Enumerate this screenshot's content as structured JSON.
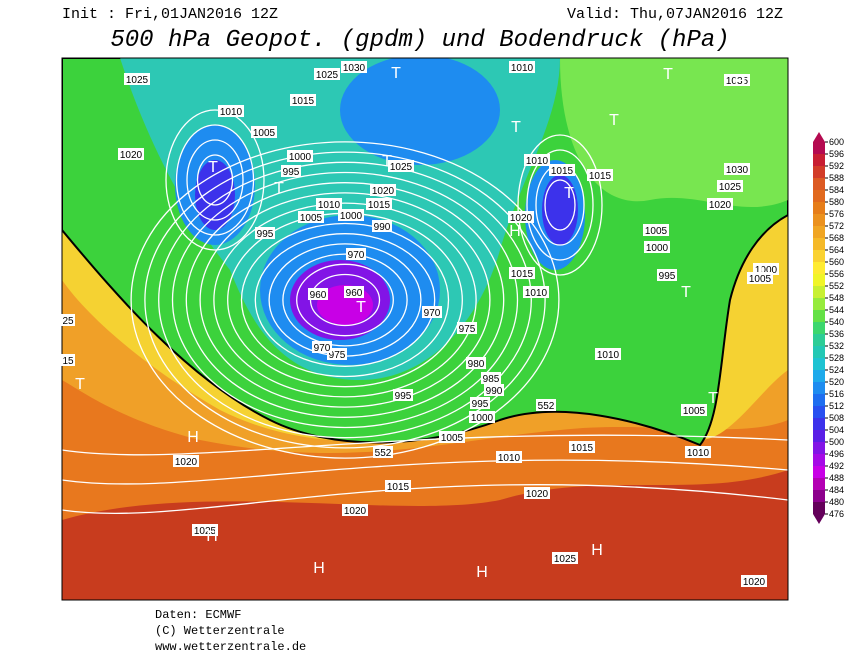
{
  "header": {
    "init": "Init : Fri,01JAN2016 12Z",
    "valid": "Valid: Thu,07JAN2016 12Z",
    "title": "500 hPa Geopot. (gpdm) und Bodendruck (hPa)"
  },
  "colorbar": {
    "labels": [
      600,
      596,
      592,
      588,
      584,
      580,
      576,
      572,
      568,
      564,
      560,
      556,
      552,
      548,
      544,
      540,
      536,
      532,
      528,
      524,
      520,
      516,
      512,
      508,
      504,
      500,
      496,
      492,
      488,
      484,
      480,
      476
    ],
    "colors": [
      "#b40a50",
      "#c81e32",
      "#d23c28",
      "#dc5a23",
      "#e1691e",
      "#e67d19",
      "#eb911e",
      "#f0a523",
      "#f5b928",
      "#fad232",
      "#ffeb32",
      "#f0f528",
      "#c8f032",
      "#96eb3c",
      "#64e146",
      "#3cd76e",
      "#2dcd96",
      "#23c8b4",
      "#1ec3d2",
      "#1eaaeb",
      "#1e8cf0",
      "#1e6ef0",
      "#2850f0",
      "#3c32eb",
      "#5a1ee6",
      "#8214e6",
      "#a50ae6",
      "#c800e6",
      "#b400b4",
      "#8c008c",
      "#64005a"
    ]
  },
  "isobar_labels": [
    "1025",
    "1030",
    "1025",
    "1015",
    "1010",
    "1005",
    "1000",
    "995",
    "1020",
    "995",
    "1010",
    "1005",
    "1000",
    "1015",
    "1020",
    "1025",
    "990",
    "970",
    "960",
    "960",
    "970",
    "975",
    "975",
    "970",
    "980",
    "985",
    "990",
    "995",
    "995",
    "1000",
    "1005",
    "552",
    "552",
    "1010",
    "1015",
    "1020",
    "1020",
    "1020",
    "1025",
    "1025",
    "1020",
    "1010",
    "1010",
    "1015",
    "1015",
    "1020",
    "1015",
    "1010",
    "1010",
    "1005",
    "1000",
    "995",
    "1005",
    "1010",
    "1015",
    "1030",
    "1025",
    "1020",
    "1035",
    "1000",
    "1005",
    "25",
    "15"
  ],
  "markers": [
    "T",
    "T",
    "T",
    "T",
    "T",
    "T",
    "T",
    "T",
    "T",
    "T",
    "T",
    "T",
    "T",
    "H",
    "H",
    "H",
    "H",
    "H",
    "H",
    "H"
  ],
  "footer": {
    "source": "Daten: ECMWF",
    "copyright": "(C) Wetterzentrale",
    "url": "www.wetterzentrale.de"
  }
}
